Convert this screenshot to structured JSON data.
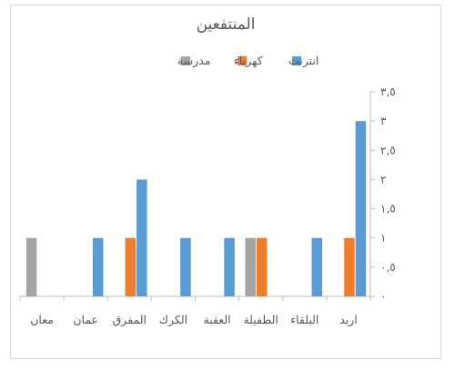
{
  "chart_data": {
    "type": "bar",
    "title": "المنتفعين",
    "direction": "rtl",
    "categories": [
      "اربد",
      "البلقاء",
      "الطفيلة",
      "العقبة",
      "الكرك",
      "المفرق",
      "عمان",
      "معان"
    ],
    "series": [
      {
        "name": "انترنت",
        "color": "#5b9bd5",
        "values": [
          3,
          1,
          0,
          1,
          1,
          2,
          1,
          0
        ]
      },
      {
        "name": "كهرباء",
        "color": "#ed7d31",
        "values": [
          1,
          0,
          1,
          0,
          0,
          1,
          0,
          0
        ]
      },
      {
        "name": "مدرسة",
        "color": "#a5a5a5",
        "values": [
          0,
          0,
          1,
          0,
          0,
          0,
          0,
          1
        ]
      }
    ],
    "ylim": [
      0,
      3.5
    ],
    "yticks": [
      0,
      0.5,
      1,
      1.5,
      2,
      2.5,
      3,
      3.5
    ],
    "ytick_labels": [
      "٠",
      "٠,٥",
      "١",
      "١,٥",
      "٢",
      "٢,٥",
      "٣",
      "٣,٥"
    ],
    "yaxis_side": "right",
    "legend_position": "top",
    "grid": false,
    "xlabel": "",
    "ylabel": ""
  }
}
